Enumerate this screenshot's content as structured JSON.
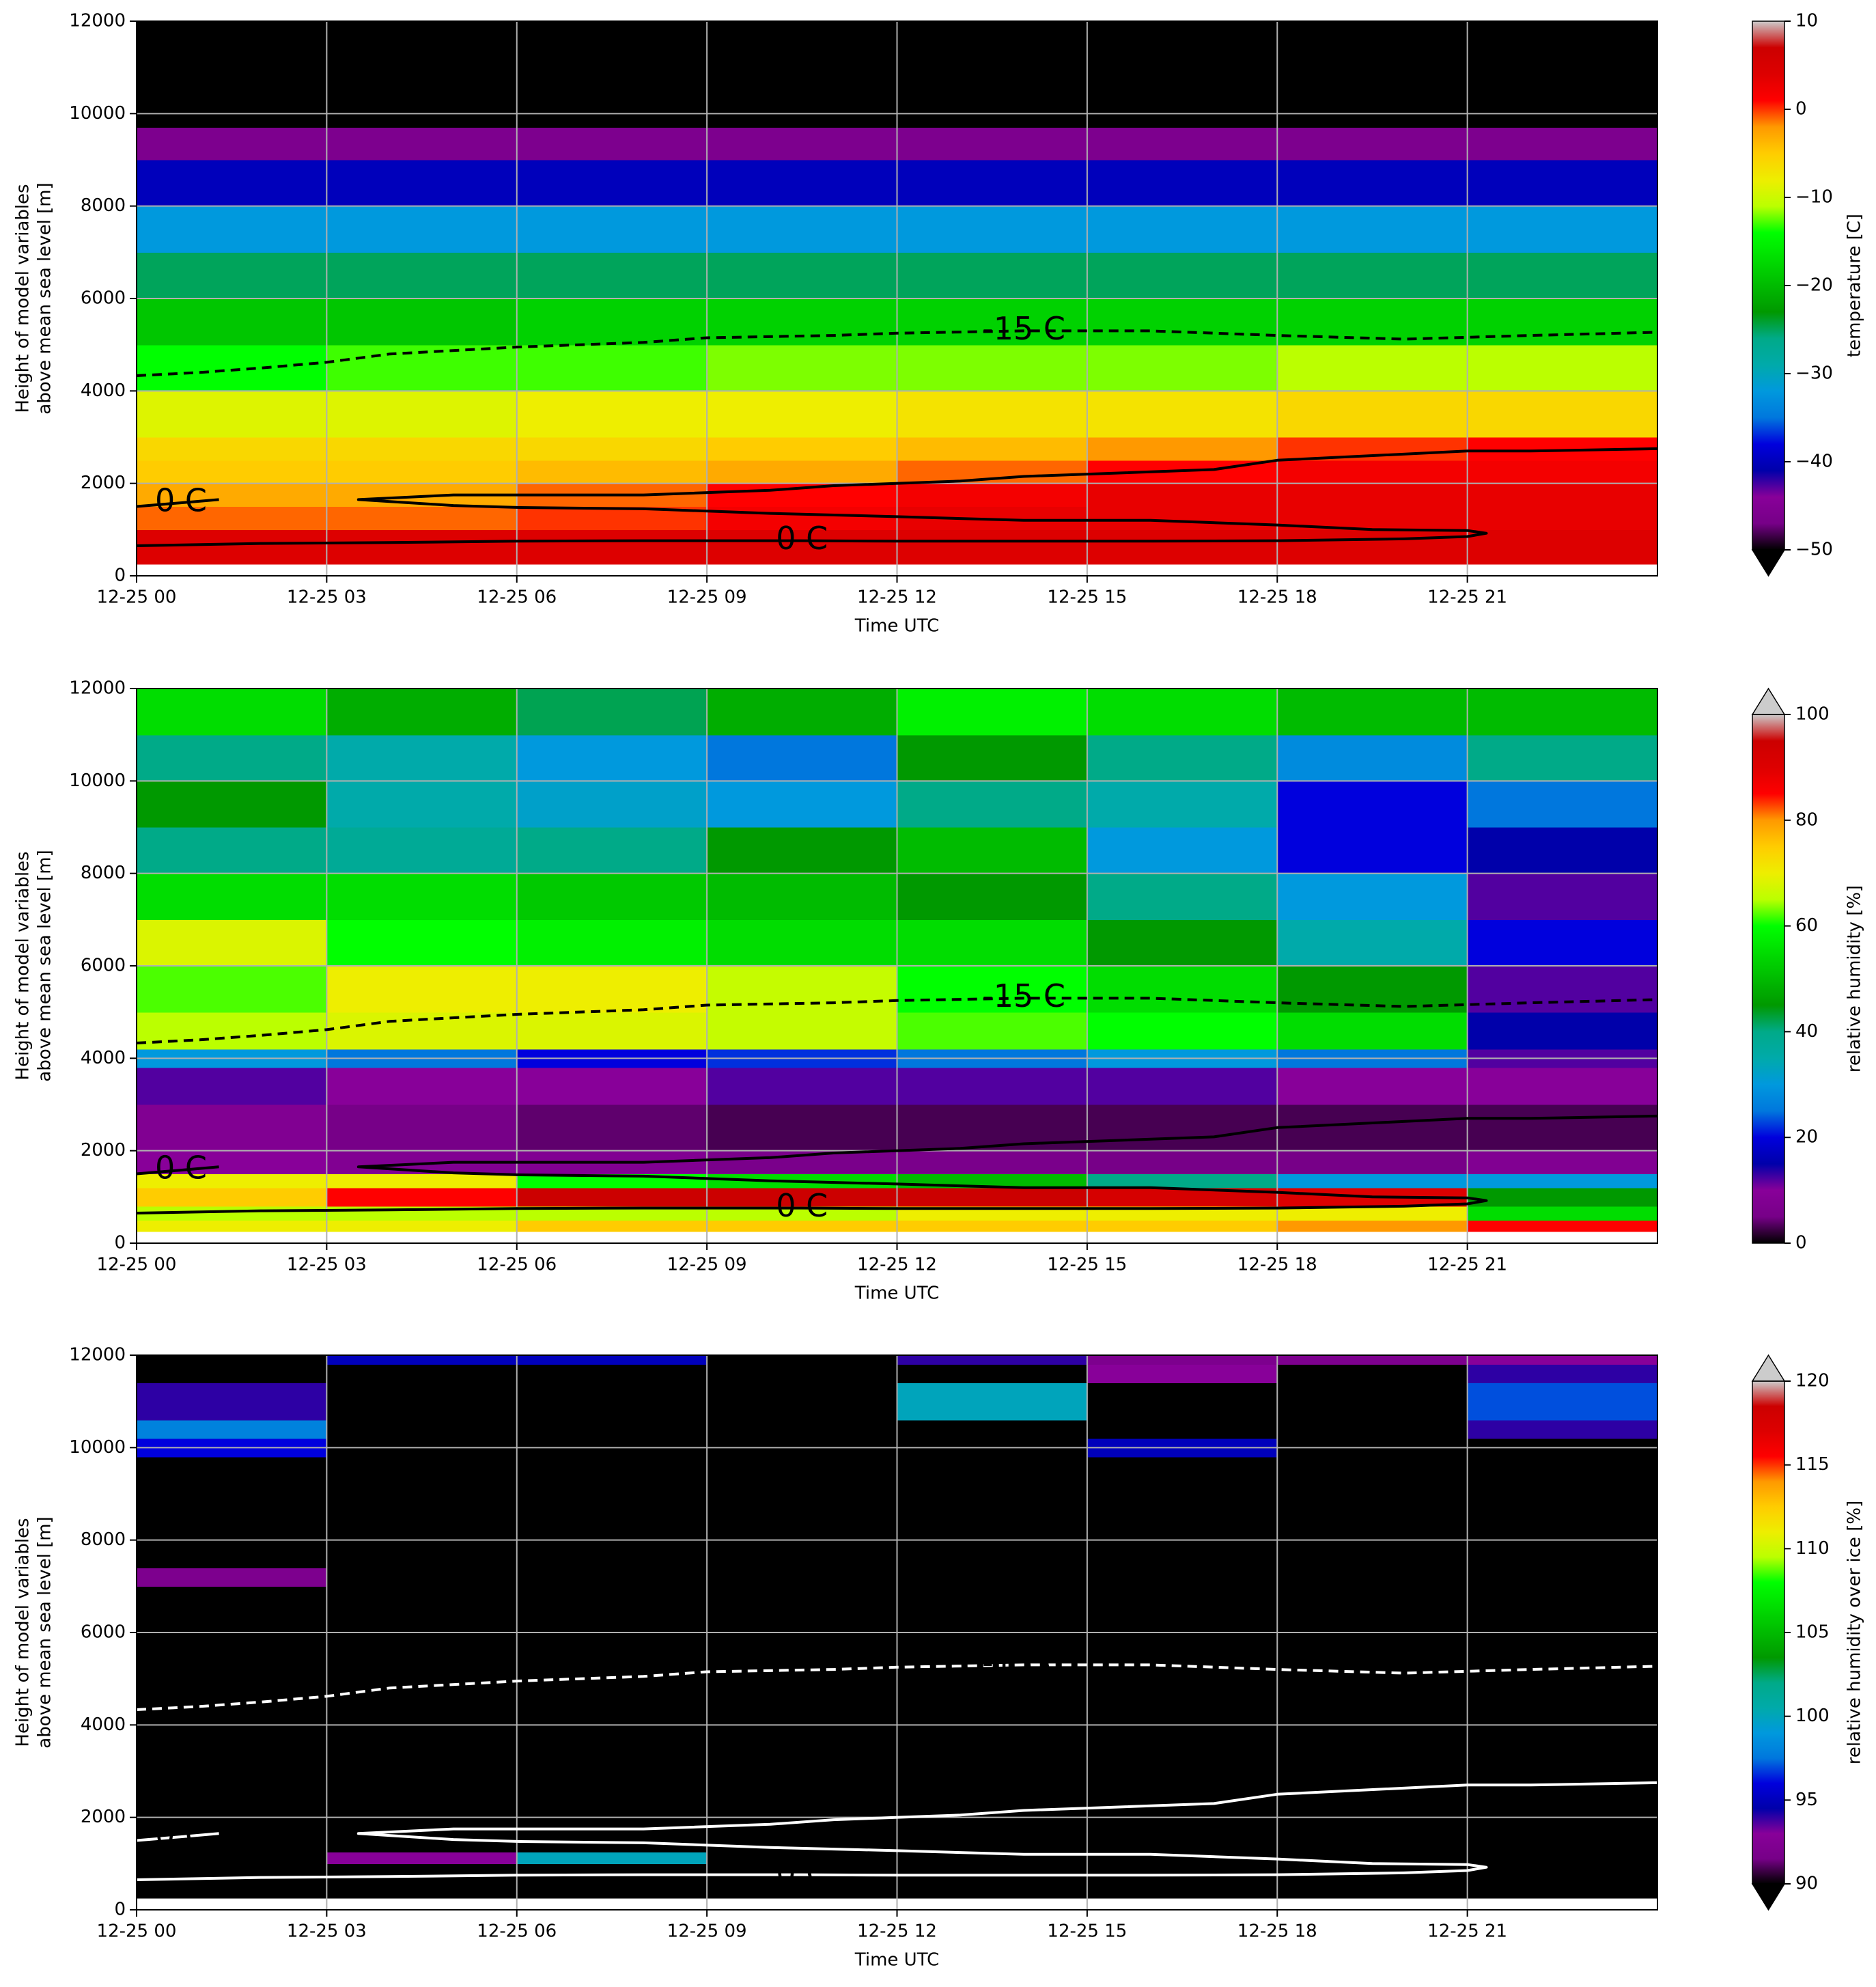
{
  "chart_data": [
    {
      "type": "heatmap",
      "colormap": "nipy_spectral",
      "clim": [
        -50,
        10
      ],
      "extend": "min",
      "cticks": [
        {
          "value": 10,
          "label": "10"
        },
        {
          "value": 0,
          "label": "0"
        },
        {
          "value": -10,
          "label": "−10"
        },
        {
          "value": -20,
          "label": "−20"
        },
        {
          "value": -30,
          "label": "−30"
        },
        {
          "value": -40,
          "label": "−40"
        },
        {
          "value": -50,
          "label": "−50"
        }
      ],
      "colorbar_label": "temperature [C]",
      "ylabel": [
        "Height of model variables",
        "above mean sea level [m]"
      ],
      "xlabel": "Time UTC",
      "xlim": [
        0,
        24
      ],
      "xticks": [
        {
          "value": 0,
          "label": "12-25 00"
        },
        {
          "value": 3,
          "label": "12-25 03"
        },
        {
          "value": 6,
          "label": "12-25 06"
        },
        {
          "value": 9,
          "label": "12-25 09"
        },
        {
          "value": 12,
          "label": "12-25 12"
        },
        {
          "value": 15,
          "label": "12-25 15"
        },
        {
          "value": 18,
          "label": "12-25 18"
        },
        {
          "value": 21,
          "label": "12-25 21"
        }
      ],
      "ylim": [
        0,
        12000
      ],
      "yticks": [
        0,
        2000,
        4000,
        6000,
        8000,
        10000,
        12000
      ],
      "grid": true,
      "xbins": [
        0,
        3,
        6,
        9,
        12,
        15,
        18,
        21,
        24
      ],
      "ybins": [
        250,
        1000,
        1500,
        2000,
        2500,
        3000,
        4000,
        5000,
        6000,
        7000,
        8000,
        9000,
        9700,
        12000
      ],
      "z": [
        [
          4,
          4,
          4,
          4,
          4,
          4,
          4,
          4
        ],
        [
          -1,
          -1,
          0,
          2,
          3,
          3,
          3,
          3
        ],
        [
          -3,
          -3,
          -1,
          1,
          2,
          3,
          3,
          3
        ],
        [
          -5,
          -5,
          -4,
          -3,
          -1,
          1,
          2,
          2
        ],
        [
          -6,
          -6,
          -6,
          -5,
          -4,
          -2,
          0,
          1
        ],
        [
          -9,
          -9,
          -8,
          -8,
          -7,
          -7,
          -6,
          -6
        ],
        [
          -14,
          -13,
          -13,
          -12,
          -12,
          -12,
          -11,
          -11
        ],
        [
          -19,
          -19,
          -18,
          -18,
          -18,
          -18,
          -18,
          -18
        ],
        [
          -25,
          -25,
          -25,
          -25,
          -25,
          -25,
          -25,
          -25
        ],
        [
          -32,
          -32,
          -32,
          -32,
          -32,
          -32,
          -32,
          -32
        ],
        [
          -40,
          -40,
          -40,
          -40,
          -40,
          -40,
          -40,
          -40
        ],
        [
          -46,
          -46,
          -46,
          -46,
          -46,
          -46,
          -46,
          -46
        ],
        [
          -56,
          -56,
          -56,
          -56,
          -56,
          -56,
          -56,
          -56
        ]
      ],
      "contours": [
        {
          "label": "-15 C",
          "color": "#000000",
          "dashed": true,
          "x": [
            0,
            1,
            2,
            3,
            4,
            6,
            8,
            9,
            11,
            12,
            14,
            16,
            18,
            20,
            22,
            24
          ],
          "y": [
            4330,
            4400,
            4500,
            4620,
            4800,
            4950,
            5050,
            5150,
            5200,
            5250,
            5300,
            5300,
            5200,
            5120,
            5200,
            5270
          ]
        },
        {
          "label": "0 C",
          "color": "#000000",
          "dashed": false,
          "x": [
            0,
            0.7,
            1.3
          ],
          "y": [
            1500,
            1580,
            1650
          ]
        },
        {
          "label": "0 C",
          "color": "#000000",
          "dashed": false,
          "x": [
            0,
            2,
            4,
            6,
            8,
            10,
            10.5,
            12,
            14,
            16,
            18,
            20,
            21,
            21.3,
            21,
            19.5,
            18,
            16,
            14,
            12,
            10,
            8,
            6,
            5,
            3.5,
            5,
            8,
            10,
            11,
            13,
            14,
            17,
            18,
            21,
            22,
            24
          ],
          "y": [
            650,
            700,
            720,
            750,
            760,
            760,
            760,
            750,
            750,
            750,
            760,
            800,
            850,
            920,
            980,
            1000,
            1100,
            1200,
            1200,
            1280,
            1350,
            1450,
            1480,
            1520,
            1650,
            1750,
            1750,
            1850,
            1950,
            2050,
            2150,
            2300,
            2500,
            2700,
            2700,
            2750
          ]
        }
      ]
    },
    {
      "type": "heatmap",
      "colormap": "nipy_spectral",
      "clim": [
        0,
        100
      ],
      "extend": "max",
      "cticks": [
        0,
        20,
        40,
        60,
        80,
        100
      ],
      "colorbar_label": "relative humidity [%]",
      "ylabel": [
        "Height of model variables",
        "above mean sea level [m]"
      ],
      "xlabel": "Time UTC",
      "xlim": [
        0,
        24
      ],
      "xticks": [
        {
          "value": 0,
          "label": "12-25 00"
        },
        {
          "value": 3,
          "label": "12-25 03"
        },
        {
          "value": 6,
          "label": "12-25 06"
        },
        {
          "value": 9,
          "label": "12-25 09"
        },
        {
          "value": 12,
          "label": "12-25 12"
        },
        {
          "value": 15,
          "label": "12-25 15"
        },
        {
          "value": 18,
          "label": "12-25 18"
        },
        {
          "value": 21,
          "label": "12-25 21"
        }
      ],
      "ylim": [
        0,
        12000
      ],
      "yticks": [
        0,
        2000,
        4000,
        6000,
        8000,
        10000,
        12000
      ],
      "grid": true,
      "xbins": [
        0,
        3,
        6,
        9,
        12,
        15,
        18,
        21,
        24
      ],
      "ybins": [
        250,
        500,
        800,
        1200,
        1500,
        2000,
        3000,
        3800,
        4200,
        5000,
        6000,
        7000,
        8000,
        9000,
        10000,
        11000,
        12000
      ],
      "z": [
        [
          70,
          70,
          75,
          75,
          75,
          75,
          80,
          85
        ],
        [
          65,
          65,
          65,
          65,
          70,
          70,
          70,
          55
        ],
        [
          75,
          85,
          95,
          95,
          95,
          92,
          90,
          45
        ],
        [
          70,
          70,
          60,
          55,
          50,
          40,
          30,
          30
        ],
        [
          10,
          8,
          8,
          6,
          6,
          5,
          5,
          8
        ],
        [
          8,
          5,
          4,
          3,
          3,
          3,
          3,
          3
        ],
        [
          12,
          10,
          10,
          12,
          12,
          12,
          10,
          10
        ],
        [
          30,
          25,
          20,
          22,
          25,
          30,
          25,
          12
        ],
        [
          65,
          68,
          68,
          66,
          62,
          60,
          55,
          15
        ],
        [
          62,
          70,
          70,
          66,
          60,
          55,
          45,
          12
        ],
        [
          68,
          60,
          58,
          55,
          55,
          45,
          35,
          20
        ],
        [
          55,
          55,
          52,
          50,
          45,
          40,
          30,
          12
        ],
        [
          40,
          38,
          40,
          45,
          50,
          30,
          20,
          15
        ],
        [
          45,
          35,
          32,
          30,
          40,
          35,
          20,
          25
        ],
        [
          40,
          35,
          30,
          25,
          45,
          40,
          28,
          40
        ],
        [
          55,
          48,
          42,
          48,
          58,
          55,
          50,
          50
        ]
      ],
      "contours": [
        {
          "label": "-15 C",
          "color": "#000000",
          "dashed": true,
          "x": [
            0,
            1,
            2,
            3,
            4,
            6,
            8,
            9,
            11,
            12,
            14,
            16,
            18,
            20,
            22,
            24
          ],
          "y": [
            4330,
            4400,
            4500,
            4620,
            4800,
            4950,
            5050,
            5150,
            5200,
            5250,
            5300,
            5300,
            5200,
            5120,
            5200,
            5270
          ]
        },
        {
          "label": "0 C",
          "color": "#000000",
          "dashed": false,
          "x": [
            0,
            0.7,
            1.3
          ],
          "y": [
            1500,
            1580,
            1650
          ]
        },
        {
          "label": "0 C",
          "color": "#000000",
          "dashed": false,
          "x": [
            0,
            2,
            4,
            6,
            8,
            10,
            10.5,
            12,
            14,
            16,
            18,
            20,
            21,
            21.3,
            21,
            19.5,
            18,
            16,
            14,
            12,
            10,
            8,
            6,
            5,
            3.5,
            5,
            8,
            10,
            11,
            13,
            14,
            17,
            18,
            21,
            22,
            24
          ],
          "y": [
            650,
            700,
            720,
            750,
            760,
            760,
            760,
            750,
            750,
            750,
            760,
            800,
            850,
            920,
            980,
            1000,
            1100,
            1200,
            1200,
            1280,
            1350,
            1450,
            1480,
            1520,
            1650,
            1750,
            1750,
            1850,
            1950,
            2050,
            2150,
            2300,
            2500,
            2700,
            2700,
            2750
          ]
        }
      ]
    },
    {
      "type": "heatmap",
      "colormap": "nipy_spectral",
      "clim": [
        90,
        120
      ],
      "extend": "both",
      "cticks": [
        90,
        95,
        100,
        105,
        110,
        115,
        120
      ],
      "colorbar_label": "relative humidity over ice [%]",
      "ylabel": [
        "Height of model variables",
        "above mean sea level [m]"
      ],
      "xlabel": "Time UTC",
      "xlim": [
        0,
        24
      ],
      "xticks": [
        {
          "value": 0,
          "label": "12-25 00"
        },
        {
          "value": 3,
          "label": "12-25 03"
        },
        {
          "value": 6,
          "label": "12-25 06"
        },
        {
          "value": 9,
          "label": "12-25 09"
        },
        {
          "value": 12,
          "label": "12-25 12"
        },
        {
          "value": 15,
          "label": "12-25 15"
        },
        {
          "value": 18,
          "label": "12-25 18"
        },
        {
          "value": 21,
          "label": "12-25 21"
        }
      ],
      "ylim": [
        0,
        12000
      ],
      "yticks": [
        0,
        2000,
        4000,
        6000,
        8000,
        10000,
        12000
      ],
      "grid": true,
      "xbins": [
        0,
        3,
        6,
        9,
        12,
        15,
        18,
        21,
        24
      ],
      "ybins": [
        250,
        1000,
        1250,
        7000,
        7400,
        9800,
        10200,
        10600,
        11400,
        11800,
        12000
      ],
      "z": [
        [
          80,
          80,
          80,
          80,
          80,
          80,
          80,
          80
        ],
        [
          80,
          93,
          100,
          85,
          82,
          88,
          80,
          80
        ],
        [
          80,
          80,
          80,
          80,
          80,
          80,
          80,
          80
        ],
        [
          92,
          80,
          80,
          80,
          80,
          80,
          80,
          80
        ],
        [
          80,
          80,
          80,
          80,
          80,
          80,
          80,
          80
        ],
        [
          96,
          80,
          80,
          80,
          80,
          95,
          80,
          88
        ],
        [
          98,
          80,
          80,
          80,
          80,
          80,
          80,
          94
        ],
        [
          94,
          80,
          80,
          80,
          100,
          80,
          80,
          97
        ],
        [
          80,
          85,
          80,
          80,
          80,
          93,
          80,
          94
        ],
        [
          80,
          95,
          95,
          80,
          94,
          92,
          92,
          93
        ]
      ],
      "contours": [
        {
          "label": "-15 C",
          "color": "#ffffff",
          "dashed": true,
          "x": [
            0,
            1,
            2,
            3,
            4,
            6,
            8,
            9,
            11,
            12,
            14,
            16,
            18,
            20,
            22,
            24
          ],
          "y": [
            4330,
            4400,
            4500,
            4620,
            4800,
            4950,
            5050,
            5150,
            5200,
            5250,
            5300,
            5300,
            5200,
            5120,
            5200,
            5270
          ]
        },
        {
          "label": "0 C",
          "color": "#ffffff",
          "dashed": false,
          "x": [
            0,
            0.7,
            1.3
          ],
          "y": [
            1500,
            1580,
            1650
          ]
        },
        {
          "label": "0 C",
          "color": "#ffffff",
          "dashed": false,
          "x": [
            0,
            2,
            4,
            6,
            8,
            10,
            10.5,
            12,
            14,
            16,
            18,
            20,
            21,
            21.3,
            21,
            19.5,
            18,
            16,
            14,
            12,
            10,
            8,
            6,
            5,
            3.5,
            5,
            8,
            10,
            11,
            13,
            14,
            17,
            18,
            21,
            22,
            24
          ],
          "y": [
            650,
            700,
            720,
            750,
            760,
            760,
            760,
            750,
            750,
            750,
            760,
            800,
            850,
            920,
            980,
            1000,
            1100,
            1200,
            1200,
            1280,
            1350,
            1450,
            1480,
            1520,
            1650,
            1750,
            1750,
            1850,
            1950,
            2050,
            2150,
            2300,
            2500,
            2700,
            2700,
            2750
          ]
        }
      ]
    }
  ]
}
